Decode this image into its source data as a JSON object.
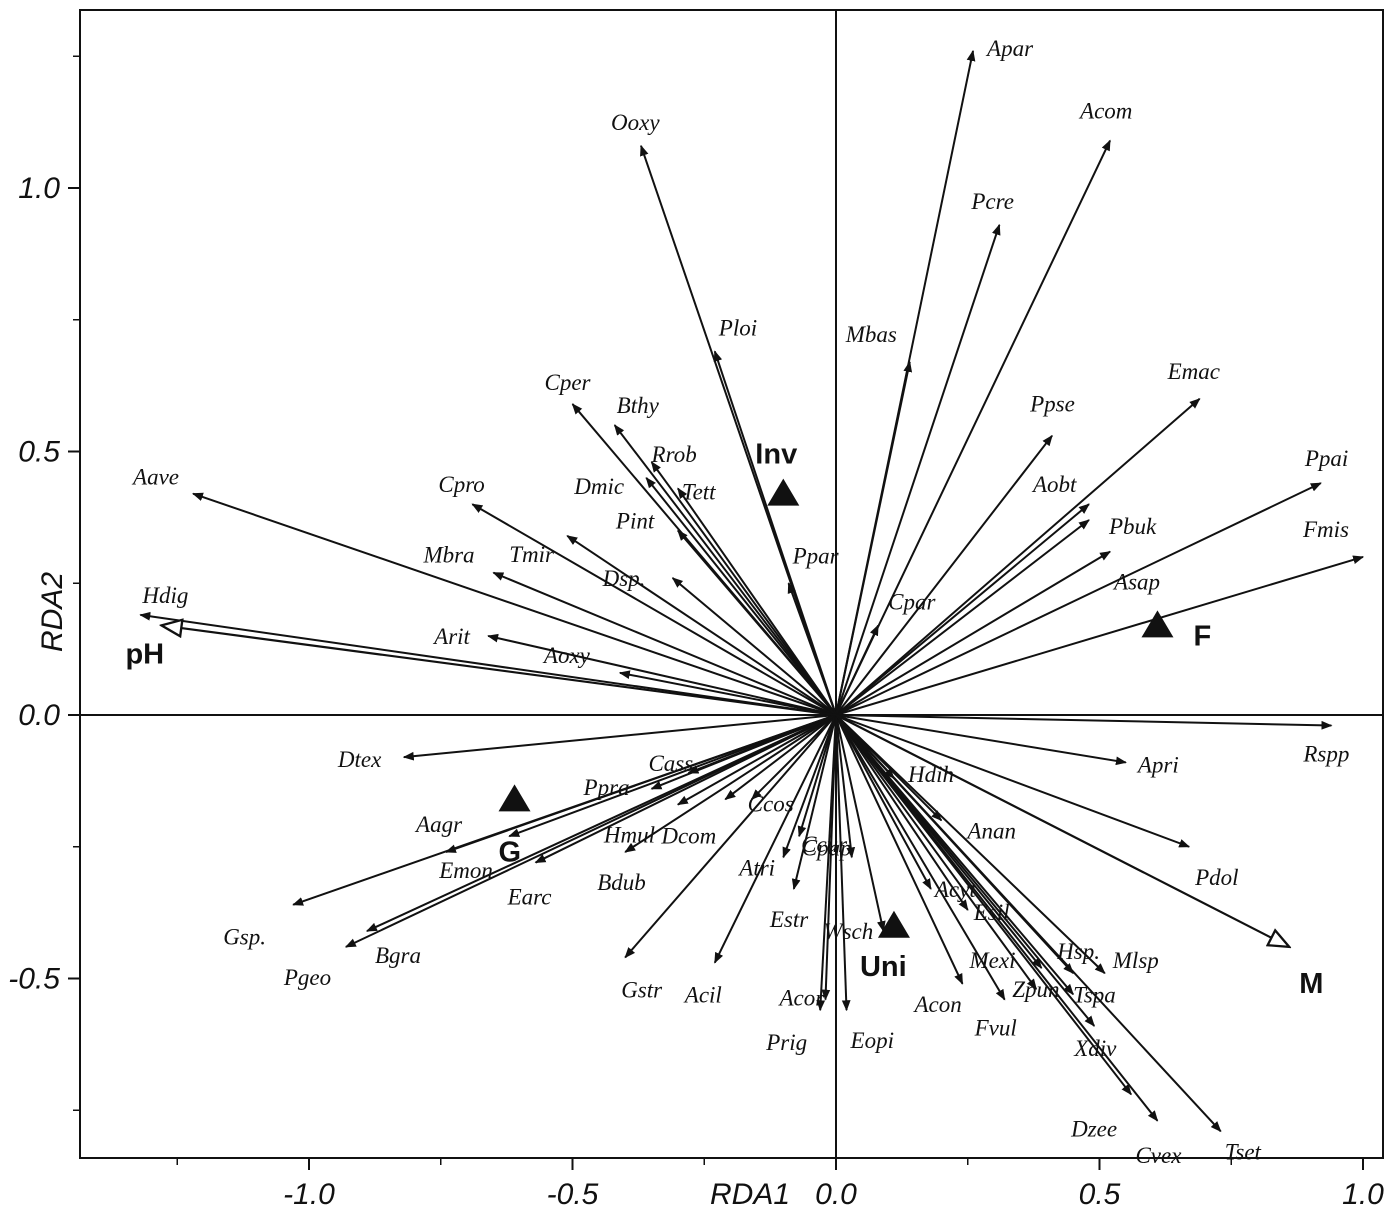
{
  "chart_data": {
    "type": "scatter",
    "xlabel": "RDA1",
    "ylabel": "RDA2",
    "xlim": [
      -1.4,
      1.02
    ],
    "ylim": [
      -0.8,
      1.3
    ],
    "xticks": [
      -1.0,
      -0.5,
      0.0,
      0.5,
      1.0
    ],
    "yticks": [
      -0.5,
      0.0,
      0.5,
      1.0
    ],
    "xtick_labels": [
      "-1.0",
      "-0.5",
      "0.0",
      "0.5",
      "1.0"
    ],
    "ytick_labels": [
      "-0.5",
      "0.0",
      "0.5",
      "1.0"
    ],
    "grid": false,
    "species_arrows": [
      {
        "name": "Apar",
        "x": 0.26,
        "y": 1.26
      },
      {
        "name": "Acom",
        "x": 0.52,
        "y": 1.09
      },
      {
        "name": "Ooxy",
        "x": -0.37,
        "y": 1.08
      },
      {
        "name": "Pcre",
        "x": 0.31,
        "y": 0.93
      },
      {
        "name": "Ploi",
        "x": -0.23,
        "y": 0.69
      },
      {
        "name": "Mbas",
        "x": 0.14,
        "y": 0.67
      },
      {
        "name": "Emac",
        "x": 0.69,
        "y": 0.6
      },
      {
        "name": "Cper",
        "x": -0.5,
        "y": 0.59
      },
      {
        "name": "Bthy",
        "x": -0.42,
        "y": 0.55
      },
      {
        "name": "Ppse",
        "x": 0.41,
        "y": 0.53
      },
      {
        "name": "Rrob",
        "x": -0.35,
        "y": 0.48
      },
      {
        "name": "Dmic",
        "x": -0.36,
        "y": 0.45
      },
      {
        "name": "Tett",
        "x": -0.3,
        "y": 0.43
      },
      {
        "name": "Ppai",
        "x": 0.92,
        "y": 0.44
      },
      {
        "name": "Aave",
        "x": -1.22,
        "y": 0.42
      },
      {
        "name": "Cpro",
        "x": -0.69,
        "y": 0.4
      },
      {
        "name": "Aobt",
        "x": 0.48,
        "y": 0.4
      },
      {
        "name": "Pbuk",
        "x": 0.48,
        "y": 0.37
      },
      {
        "name": "Pint",
        "x": -0.3,
        "y": 0.35
      },
      {
        "name": "Tmir",
        "x": -0.51,
        "y": 0.34
      },
      {
        "name": "Asap",
        "x": 0.52,
        "y": 0.31
      },
      {
        "name": "Fmis",
        "x": 1.0,
        "y": 0.3
      },
      {
        "name": "Mbra",
        "x": -0.65,
        "y": 0.27
      },
      {
        "name": "Dsp.",
        "x": -0.31,
        "y": 0.26
      },
      {
        "name": "Ppar",
        "x": -0.09,
        "y": 0.25
      },
      {
        "name": "Hdig",
        "x": -1.32,
        "y": 0.19
      },
      {
        "name": "Cpar",
        "x": 0.08,
        "y": 0.17
      },
      {
        "name": "Arit",
        "x": -0.66,
        "y": 0.15
      },
      {
        "name": "Aoxy",
        "x": -0.41,
        "y": 0.08
      },
      {
        "name": "Rspp",
        "x": 0.94,
        "y": -0.02
      },
      {
        "name": "Dtex",
        "x": -0.82,
        "y": -0.08
      },
      {
        "name": "Apri",
        "x": 0.55,
        "y": -0.09
      },
      {
        "name": "Cass",
        "x": -0.28,
        "y": -0.11
      },
      {
        "name": "Hdih",
        "x": 0.11,
        "y": -0.12
      },
      {
        "name": "Ppra",
        "x": -0.35,
        "y": -0.14
      },
      {
        "name": "Ccos",
        "x": -0.16,
        "y": -0.16
      },
      {
        "name": "Hmul",
        "x": -0.3,
        "y": -0.17
      },
      {
        "name": "Dcom",
        "x": -0.21,
        "y": -0.16
      },
      {
        "name": "Anan",
        "x": 0.2,
        "y": -0.2
      },
      {
        "name": "Pdol",
        "x": 0.67,
        "y": -0.25
      },
      {
        "name": "Ccur",
        "x": -0.07,
        "y": -0.23
      },
      {
        "name": "Aagr",
        "x": -0.74,
        "y": -0.26
      },
      {
        "name": "Bdub",
        "x": -0.4,
        "y": -0.26
      },
      {
        "name": "Emon",
        "x": -0.62,
        "y": -0.23
      },
      {
        "name": "Earc",
        "x": -0.57,
        "y": -0.28
      },
      {
        "name": "Cpap",
        "x": 0.03,
        "y": -0.27
      },
      {
        "name": "Atri",
        "x": -0.1,
        "y": -0.27
      },
      {
        "name": "Estr",
        "x": -0.08,
        "y": -0.33
      },
      {
        "name": "Acyt",
        "x": 0.18,
        "y": -0.33
      },
      {
        "name": "Esil",
        "x": 0.25,
        "y": -0.37
      },
      {
        "name": "Gsp.",
        "x": -1.03,
        "y": -0.36
      },
      {
        "name": "Bgra",
        "x": -0.89,
        "y": -0.41
      },
      {
        "name": "Wsch",
        "x": 0.09,
        "y": -0.41
      },
      {
        "name": "Pgeo",
        "x": -0.93,
        "y": -0.44
      },
      {
        "name": "Gstr",
        "x": -0.4,
        "y": -0.46
      },
      {
        "name": "Acil",
        "x": -0.23,
        "y": -0.47
      },
      {
        "name": "Mexi",
        "x": 0.39,
        "y": -0.48
      },
      {
        "name": "Hsp.",
        "x": 0.45,
        "y": -0.49
      },
      {
        "name": "Mlsp",
        "x": 0.51,
        "y": -0.49
      },
      {
        "name": "Acon",
        "x": 0.24,
        "y": -0.51
      },
      {
        "name": "Zpun",
        "x": 0.38,
        "y": -0.52
      },
      {
        "name": "Tspa",
        "x": 0.45,
        "y": -0.53
      },
      {
        "name": "Fvul",
        "x": 0.32,
        "y": -0.54
      },
      {
        "name": "Acor",
        "x": -0.02,
        "y": -0.54
      },
      {
        "name": "Prig",
        "x": -0.03,
        "y": -0.56
      },
      {
        "name": "Eopi",
        "x": 0.02,
        "y": -0.56
      },
      {
        "name": "Xdiv",
        "x": 0.49,
        "y": -0.59
      },
      {
        "name": "Dzee",
        "x": 0.56,
        "y": -0.72
      },
      {
        "name": "Cvex",
        "x": 0.61,
        "y": -0.77
      },
      {
        "name": "Tset",
        "x": 0.73,
        "y": -0.79
      }
    ],
    "env_arrows": [
      {
        "name": "pH",
        "x": -1.28,
        "y": 0.17
      },
      {
        "name": "M",
        "x": 0.86,
        "y": -0.44
      }
    ],
    "centroids": [
      {
        "name": "Inv",
        "x": -0.1,
        "y": 0.42
      },
      {
        "name": "F",
        "x": 0.61,
        "y": 0.17
      },
      {
        "name": "G",
        "x": -0.61,
        "y": -0.16
      },
      {
        "name": "Uni",
        "x": 0.11,
        "y": -0.4
      }
    ]
  },
  "labels": {
    "Apar": {
      "dx": 14,
      "dy": 5
    },
    "Acom": {
      "dx": -30,
      "dy": -22
    },
    "Ooxy": {
      "dx": -30,
      "dy": -16
    },
    "Pcre": {
      "dx": -28,
      "dy": -16
    },
    "Ploi": {
      "dx": 4,
      "dy": -16
    },
    "Mbas": {
      "dx": -64,
      "dy": -20
    },
    "Emac": {
      "dx": -32,
      "dy": -20
    },
    "Cper": {
      "dx": -28,
      "dy": -14
    },
    "Bthy": {
      "dx": 2,
      "dy": -12
    },
    "Ppse": {
      "dx": -22,
      "dy": -24
    },
    "Rrob": {
      "dx": 0,
      "dy": 0
    },
    "Dmic": {
      "dx": -72,
      "dy": 16
    },
    "Tett": {
      "dx": 4,
      "dy": 11
    },
    "Ppai": {
      "dx": -16,
      "dy": -17
    },
    "Aave": {
      "dx": -60,
      "dy": -9
    },
    "Cpro": {
      "dx": -34,
      "dy": -12
    },
    "Aobt": {
      "dx": -56,
      "dy": -12
    },
    "Pbuk": {
      "dx": 20,
      "dy": 14
    },
    "Pint": {
      "dx": -62,
      "dy": -2
    },
    "Tmir": {
      "dx": -58,
      "dy": 26
    },
    "Asap": {
      "dx": 4,
      "dy": 38
    },
    "Fmis": {
      "dx": -60,
      "dy": -20
    },
    "Mbra": {
      "dx": -70,
      "dy": -10
    },
    "Dsp.": {
      "dx": -70,
      "dy": 8
    },
    "Ppar": {
      "dx": 4,
      "dy": -20
    },
    "Hdig": {
      "dx": 2,
      "dy": -12
    },
    "Cpar": {
      "dx": 10,
      "dy": -16
    },
    "Arit": {
      "dx": -54,
      "dy": 8
    },
    "Aoxy": {
      "dx": -76,
      "dy": -10
    },
    "Rspp": {
      "dx": -28,
      "dy": 36
    },
    "Dtex": {
      "dx": -66,
      "dy": 10
    },
    "Apri": {
      "dx": 12,
      "dy": 10
    },
    "Cass": {
      "dx": -40,
      "dy": -2
    },
    "Hdih": {
      "dx": 14,
      "dy": 4
    },
    "Ppra": {
      "dx": -68,
      "dy": 6
    },
    "Ccos": {
      "dx": -4,
      "dy": 12
    },
    "Hmul": {
      "dx": -74,
      "dy": 38
    },
    "Dcom": {
      "dx": -64,
      "dy": 44
    },
    "Anan": {
      "dx": 26,
      "dy": 18
    },
    "Pdol": {
      "dx": 6,
      "dy": 38
    },
    "Ccur": {
      "dx": 2,
      "dy": 16
    },
    "Aagr": {
      "dx": -30,
      "dy": -20
    },
    "Bdub": {
      "dx": -28,
      "dy": 38
    },
    "Emon": {
      "dx": -70,
      "dy": 42
    },
    "Earc": {
      "dx": -28,
      "dy": 42
    },
    "Cpap": {
      "dx": -50,
      "dy": -2
    },
    "Atri": {
      "dx": -44,
      "dy": 18
    },
    "Estr": {
      "dx": -24,
      "dy": 38
    },
    "Acyt": {
      "dx": 4,
      "dy": 8
    },
    "Esil": {
      "dx": 6,
      "dy": 10
    },
    "Gsp.": {
      "dx": -70,
      "dy": 40
    },
    "Bgra": {
      "dx": 8,
      "dy": 32
    },
    "Wsch": {
      "dx": -60,
      "dy": 8
    },
    "Pgeo": {
      "dx": -62,
      "dy": 38
    },
    "Gstr": {
      "dx": -4,
      "dy": 40
    },
    "Acil": {
      "dx": -30,
      "dy": 40
    },
    "Mexi": {
      "dx": -72,
      "dy": 0
    },
    "Hsp.": {
      "dx": -16,
      "dy": -14
    },
    "Mlsp": {
      "dx": 8,
      "dy": -5
    },
    "Acon": {
      "dx": -48,
      "dy": 28
    },
    "Zpun": {
      "dx": -24,
      "dy": 8
    },
    "Tspa": {
      "dx": 0,
      "dy": 8
    },
    "Fvul": {
      "dx": -30,
      "dy": 36
    },
    "Acor": {
      "dx": -46,
      "dy": 6
    },
    "Prig": {
      "dx": -54,
      "dy": 40
    },
    "Eopi": {
      "dx": 4,
      "dy": 38
    },
    "Xdiv": {
      "dx": -20,
      "dy": 30
    },
    "Dzee": {
      "dx": -60,
      "dy": 42
    },
    "Cvex": {
      "dx": -22,
      "dy": 42
    },
    "Tset": {
      "dx": 4,
      "dy": 28
    }
  },
  "env_labels": {
    "pH": {
      "dx": -36,
      "dy": 38
    },
    "M": {
      "dx": 10,
      "dy": 46
    }
  },
  "centroid_labels": {
    "Inv": {
      "dx": -28,
      "dy": -30
    },
    "F": {
      "dx": 36,
      "dy": 20
    },
    "G": {
      "dx": -16,
      "dy": 62
    },
    "Uni": {
      "dx": -34,
      "dy": 50
    }
  }
}
